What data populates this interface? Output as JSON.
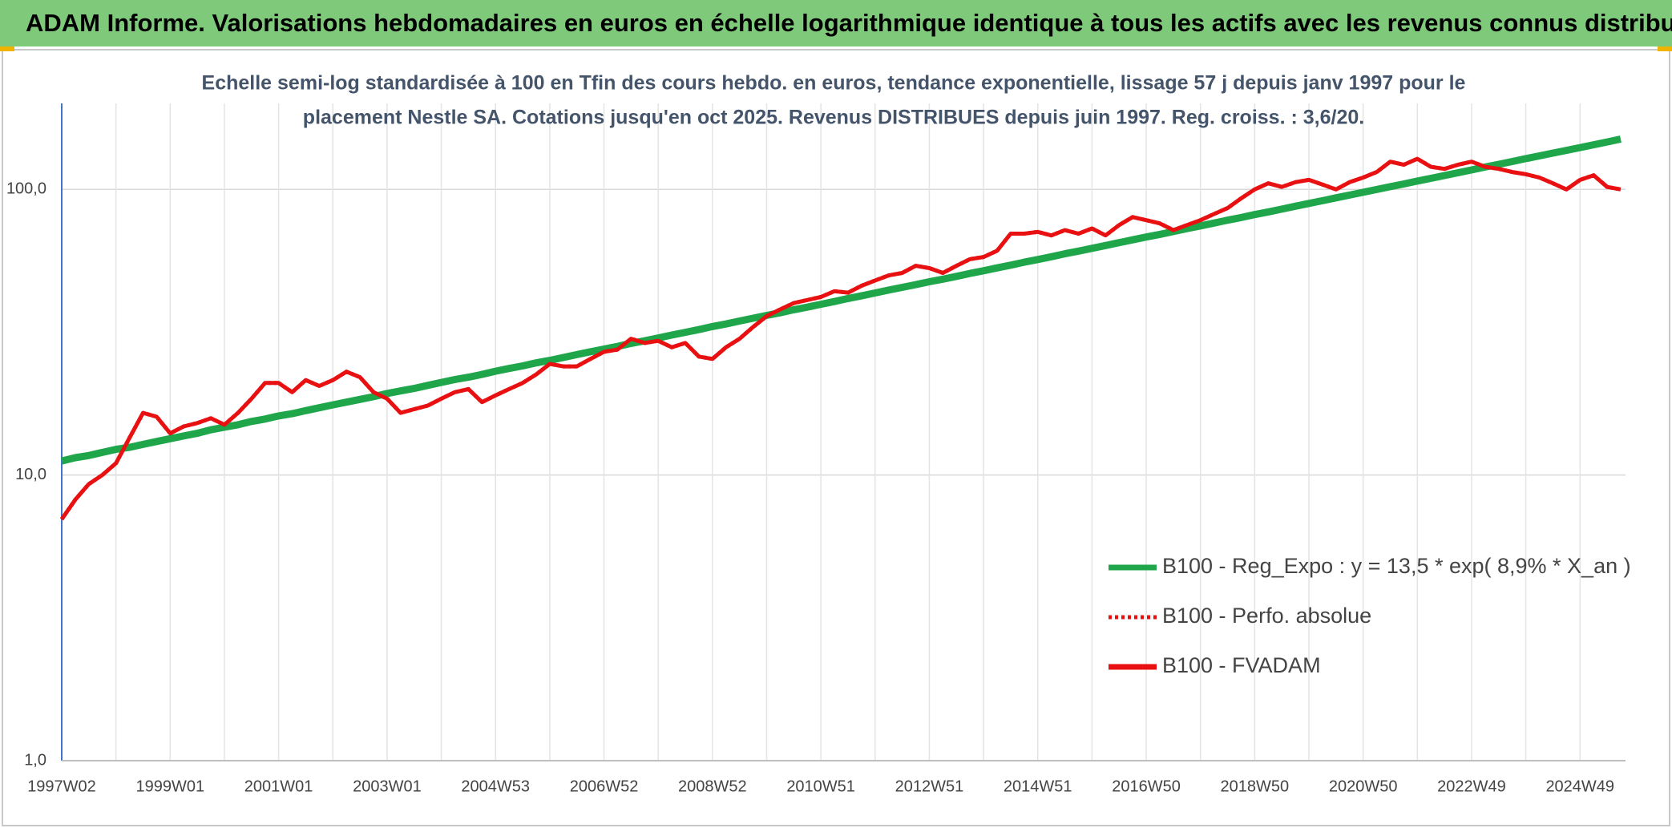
{
  "header": "ADAM Informe. Valorisations hebdomadaires en euros en échelle logarithmique identique à tous les actifs avec les revenus connus distribués",
  "chart_data": {
    "type": "line",
    "title_lines": [
      "Echelle semi-log standardisée à 100 en Tfin des cours hebdo. en euros, tendance exponentielle, lissage 57 j depuis janv 1997 pour le",
      "placement Nestle SA. Cotations jusqu'en oct 2025. Revenus DISTRIBUES depuis juin 1997. Reg. croiss. : 3,6/20."
    ],
    "log_scale": true,
    "grid": true,
    "legend": "right",
    "ylim": [
      1,
      200
    ],
    "yticks": [
      {
        "value": 1,
        "label": "1,0"
      },
      {
        "value": 10,
        "label": "10,0"
      },
      {
        "value": 100,
        "label": "100,0"
      }
    ],
    "categories": [
      "1997W02",
      null,
      null,
      null,
      null,
      null,
      null,
      null,
      "1999W01",
      null,
      null,
      null,
      null,
      null,
      null,
      null,
      "2001W01",
      null,
      null,
      null,
      null,
      null,
      null,
      null,
      "2003W01",
      null,
      null,
      null,
      null,
      null,
      null,
      null,
      "2004W53",
      null,
      null,
      null,
      null,
      null,
      null,
      null,
      "2006W52",
      null,
      null,
      null,
      null,
      null,
      null,
      null,
      "2008W52",
      null,
      null,
      null,
      null,
      null,
      null,
      null,
      "2010W51",
      null,
      null,
      null,
      null,
      null,
      null,
      null,
      "2012W51",
      null,
      null,
      null,
      null,
      null,
      null,
      null,
      "2014W51",
      null,
      null,
      null,
      null,
      null,
      null,
      null,
      "2016W50",
      null,
      null,
      null,
      null,
      null,
      null,
      null,
      "2018W50",
      null,
      null,
      null,
      null,
      null,
      null,
      null,
      "2020W50",
      null,
      null,
      null,
      null,
      null,
      null,
      null,
      "2022W49",
      null,
      null,
      null,
      null,
      null,
      null,
      null,
      "2024W49",
      null,
      null,
      null
    ],
    "series": [
      {
        "name": "B100 - Reg_Expo : y = 13,5 * exp( 8,9% *  X_an )",
        "color": "#1fa64a",
        "style": "solid",
        "values": [
          11.2,
          11.5,
          11.7,
          12.0,
          12.3,
          12.5,
          12.8,
          13.1,
          13.4,
          13.7,
          14.0,
          14.4,
          14.7,
          15.0,
          15.4,
          15.7,
          16.1,
          16.4,
          16.8,
          17.2,
          17.6,
          18.0,
          18.4,
          18.8,
          19.3,
          19.7,
          20.1,
          20.6,
          21.1,
          21.6,
          22.0,
          22.5,
          23.1,
          23.6,
          24.1,
          24.7,
          25.2,
          25.8,
          26.4,
          27.0,
          27.6,
          28.2,
          28.9,
          29.5,
          30.2,
          30.9,
          31.6,
          32.3,
          33.1,
          33.8,
          34.6,
          35.4,
          36.2,
          37.0,
          37.9,
          38.7,
          39.6,
          40.5,
          41.5,
          42.4,
          43.4,
          44.4,
          45.4,
          46.4,
          47.5,
          48.5,
          49.6,
          50.8,
          51.9,
          53.1,
          54.3,
          55.6,
          56.8,
          58.1,
          59.5,
          60.8,
          62.2,
          63.6,
          65.1,
          66.6,
          68.1,
          69.6,
          71.2,
          72.9,
          74.5,
          76.2,
          78.0,
          79.7,
          81.6,
          83.4,
          85.3,
          87.3,
          89.3,
          91.3,
          93.4,
          95.5,
          97.7,
          99.9,
          102.2,
          104.5,
          106.9,
          109.3,
          111.8,
          114.4,
          117.0,
          119.7,
          122.4,
          125.2,
          128.1,
          131.0,
          134.0,
          137.0,
          140.1,
          143.3,
          146.6,
          150.0
        ]
      },
      {
        "name": "B100 - Perfo. absolue",
        "color": "#e81010",
        "style": "dotted",
        "values": [
          7.0,
          8.2,
          9.3,
          10.0,
          11.0,
          13.5,
          16.5,
          16.0,
          14.0,
          14.8,
          15.2,
          15.8,
          15.0,
          16.5,
          18.5,
          21.0,
          21.0,
          19.5,
          21.5,
          20.5,
          21.5,
          23.0,
          22.0,
          19.5,
          18.5,
          16.5,
          17.0,
          17.5,
          18.5,
          19.5,
          20.0,
          18.0,
          19.0,
          20.0,
          21.0,
          22.5,
          24.5,
          24.0,
          24.0,
          25.5,
          27.0,
          27.5,
          30.0,
          29.0,
          29.5,
          28.0,
          29.0,
          26.0,
          25.5,
          28.0,
          30.0,
          33.0,
          36.0,
          38.0,
          40.0,
          41.0,
          42.0,
          44.0,
          43.5,
          46.0,
          48.0,
          50.0,
          51.0,
          54.0,
          53.0,
          51.0,
          54.0,
          57.0,
          58.0,
          61.0,
          70.0,
          70.0,
          71.0,
          69.0,
          72.0,
          70.0,
          73.0,
          69.0,
          75.0,
          80.0,
          78.0,
          76.0,
          72.0,
          75.0,
          78.0,
          82.0,
          86.0,
          93.0,
          100.0,
          105.0,
          102.0,
          106.0,
          108.0,
          104.0,
          100.0,
          106.0,
          110.0,
          115.0,
          125.0,
          122.0,
          128.0,
          120.0,
          118.0,
          122.0,
          125.0,
          120.0,
          118.0,
          115.0,
          113.0,
          110.0,
          105.0,
          100.0,
          108.0,
          112.0,
          102.0,
          100.0
        ]
      },
      {
        "name": "B100 - FVADAM",
        "color": "#e81010",
        "style": "solid",
        "values": [
          7.0,
          8.2,
          9.3,
          10.0,
          11.0,
          13.5,
          16.5,
          16.0,
          14.0,
          14.8,
          15.2,
          15.8,
          15.0,
          16.5,
          18.5,
          21.0,
          21.0,
          19.5,
          21.5,
          20.5,
          21.5,
          23.0,
          22.0,
          19.5,
          18.5,
          16.5,
          17.0,
          17.5,
          18.5,
          19.5,
          20.0,
          18.0,
          19.0,
          20.0,
          21.0,
          22.5,
          24.5,
          24.0,
          24.0,
          25.5,
          27.0,
          27.5,
          30.0,
          29.0,
          29.5,
          28.0,
          29.0,
          26.0,
          25.5,
          28.0,
          30.0,
          33.0,
          36.0,
          38.0,
          40.0,
          41.0,
          42.0,
          44.0,
          43.5,
          46.0,
          48.0,
          50.0,
          51.0,
          54.0,
          53.0,
          51.0,
          54.0,
          57.0,
          58.0,
          61.0,
          70.0,
          70.0,
          71.0,
          69.0,
          72.0,
          70.0,
          73.0,
          69.0,
          75.0,
          80.0,
          78.0,
          76.0,
          72.0,
          75.0,
          78.0,
          82.0,
          86.0,
          93.0,
          100.0,
          105.0,
          102.0,
          106.0,
          108.0,
          104.0,
          100.0,
          106.0,
          110.0,
          115.0,
          125.0,
          122.0,
          128.0,
          120.0,
          118.0,
          122.0,
          125.0,
          120.0,
          118.0,
          115.0,
          113.0,
          110.0,
          105.0,
          100.0,
          108.0,
          112.0,
          102.0,
          100.0
        ]
      }
    ]
  }
}
